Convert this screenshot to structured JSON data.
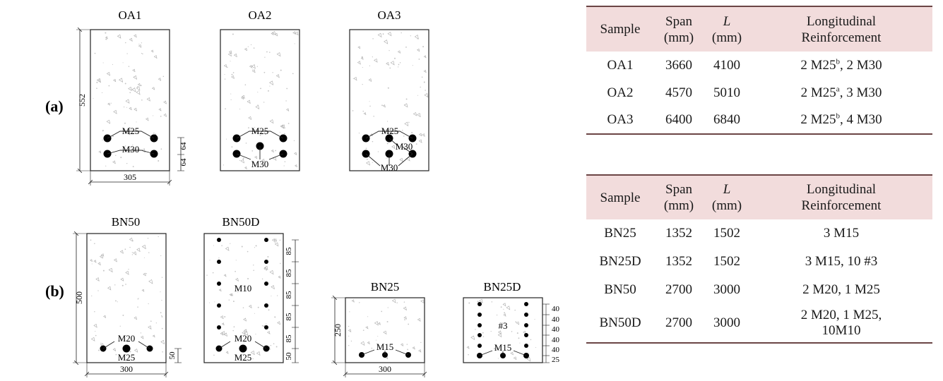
{
  "panel_labels": {
    "a": "(a)",
    "b": "(b)"
  },
  "rebar_labels": {
    "M25": "M25",
    "M30": "M30",
    "M20": "M20",
    "M10": "M10",
    "M15": "M15",
    "no3": "#3"
  },
  "sections": {
    "OA1": {
      "title": "OA1",
      "height": "552",
      "width": "305",
      "cover_top": "64",
      "cover_bot": "64"
    },
    "OA2": {
      "title": "OA2"
    },
    "OA3": {
      "title": "OA3"
    },
    "BN50": {
      "title": "BN50",
      "height": "500",
      "width": "300",
      "cover": "50"
    },
    "BN50D": {
      "title": "BN50D",
      "spacing": [
        "85",
        "85",
        "85",
        "85",
        "85"
      ],
      "cover": "50"
    },
    "BN25": {
      "title": "BN25",
      "height": "250",
      "width": "300"
    },
    "BN25D": {
      "title": "BN25D",
      "spacing": [
        "40",
        "40",
        "40",
        "40",
        "40"
      ],
      "cover": "25"
    }
  },
  "table_a": {
    "headers": {
      "sample": "Sample",
      "span1": "Span",
      "span2": "(mm)",
      "L": "L",
      "L2": "(mm)",
      "reinf1": "Longitudinal",
      "reinf2": "Reinforcement"
    },
    "rows": [
      {
        "sample": "OA1",
        "span": "3660",
        "L": "4100",
        "r_a": "2 M25",
        "r_sup": "b",
        "r_b": ", 2 M30"
      },
      {
        "sample": "OA2",
        "span": "4570",
        "L": "5010",
        "r_a": "2 M25",
        "r_sup": "a",
        "r_b": ", 3 M30"
      },
      {
        "sample": "OA3",
        "span": "6400",
        "L": "6840",
        "r_a": "2 M25",
        "r_sup": "b",
        "r_b": ", 4 M30"
      }
    ]
  },
  "table_b": {
    "headers": {
      "sample": "Sample",
      "span1": "Span",
      "span2": "(mm)",
      "L": "L",
      "L2": "(mm)",
      "reinf1": "Longitudinal",
      "reinf2": "Reinforcement"
    },
    "rows": [
      {
        "sample": "BN25",
        "span": "1352",
        "L": "1502",
        "r1": "3 M15",
        "r2": ""
      },
      {
        "sample": "BN25D",
        "span": "1352",
        "L": "1502",
        "r1": "3 M15, 10 #3",
        "r2": ""
      },
      {
        "sample": "BN50",
        "span": "2700",
        "L": "3000",
        "r1": "2 M20, 1 M25",
        "r2": ""
      },
      {
        "sample": "BN50D",
        "span": "2700",
        "L": "3000",
        "r1": "2 M20, 1 M25,",
        "r2": "10M10"
      }
    ]
  }
}
